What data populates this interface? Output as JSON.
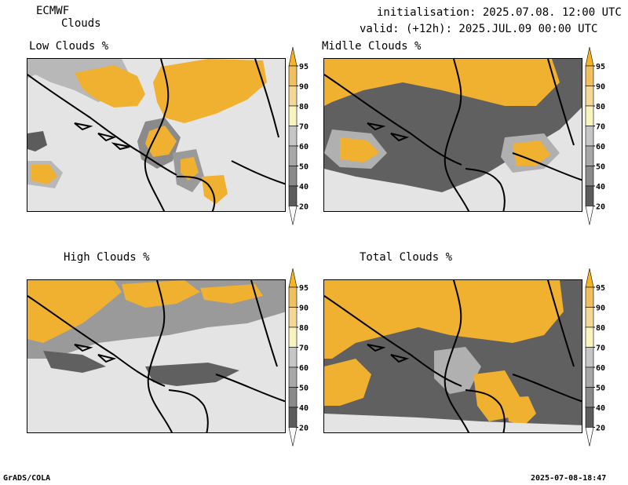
{
  "header": {
    "model": "ECMWF",
    "parameter": "Clouds",
    "initialisation": "initialisation: 2025.07.08. 12:00 UTC",
    "valid": "valid: (+12h): 2025.JUL.09 00:00 UTC"
  },
  "panels": [
    {
      "title": "Low Clouds %"
    },
    {
      "title": "Midlle Clouds %"
    },
    {
      "title": "High Clouds %"
    },
    {
      "title": "Total Clouds %"
    }
  ],
  "colorbar": {
    "levels": [
      "95",
      "90",
      "80",
      "70",
      "60",
      "50",
      "40",
      "20"
    ],
    "colors": [
      "#f5b523",
      "#f0c060",
      "#f4d898",
      "#f8f4c0",
      "#c6c6c6",
      "#a8a8a8",
      "#8a8a8a",
      "#5c5c5c",
      "#fafafa"
    ]
  },
  "footer": {
    "left": "GrADS/COLA",
    "right": "2025-07-08-18:47"
  },
  "colors": {
    "background_map": "#e4e4e4",
    "cloud_high": "#f0b030",
    "cloud_mid": "#b0b0b0",
    "cloud_dark": "#606060",
    "borders": "#000000"
  }
}
